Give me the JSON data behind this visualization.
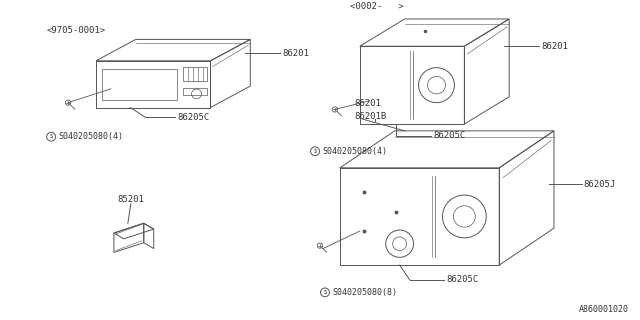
{
  "bg_color": "#ffffff",
  "line_color": "#555555",
  "text_color": "#333333",
  "diagram_id": "A860001020",
  "parts": {
    "radio_top_left": {
      "label_top": "<9705-0001>",
      "label_part": "86201",
      "label_screw": "86205C",
      "label_bolt": "S040205080(4)"
    },
    "radio_top_right": {
      "label_top": "<0002-   >",
      "label_part": "86201",
      "label_screw": "86205C",
      "label_bolt": "S040205080(4)"
    },
    "small_part_bottom_left": {
      "label_part": "85201"
    },
    "subwoofer_bottom_right": {
      "label_part1": "86201",
      "label_part2": "86201B",
      "label_screw1": "86205J",
      "label_screw2": "86205C",
      "label_bolt": "S040205080(8)"
    }
  }
}
